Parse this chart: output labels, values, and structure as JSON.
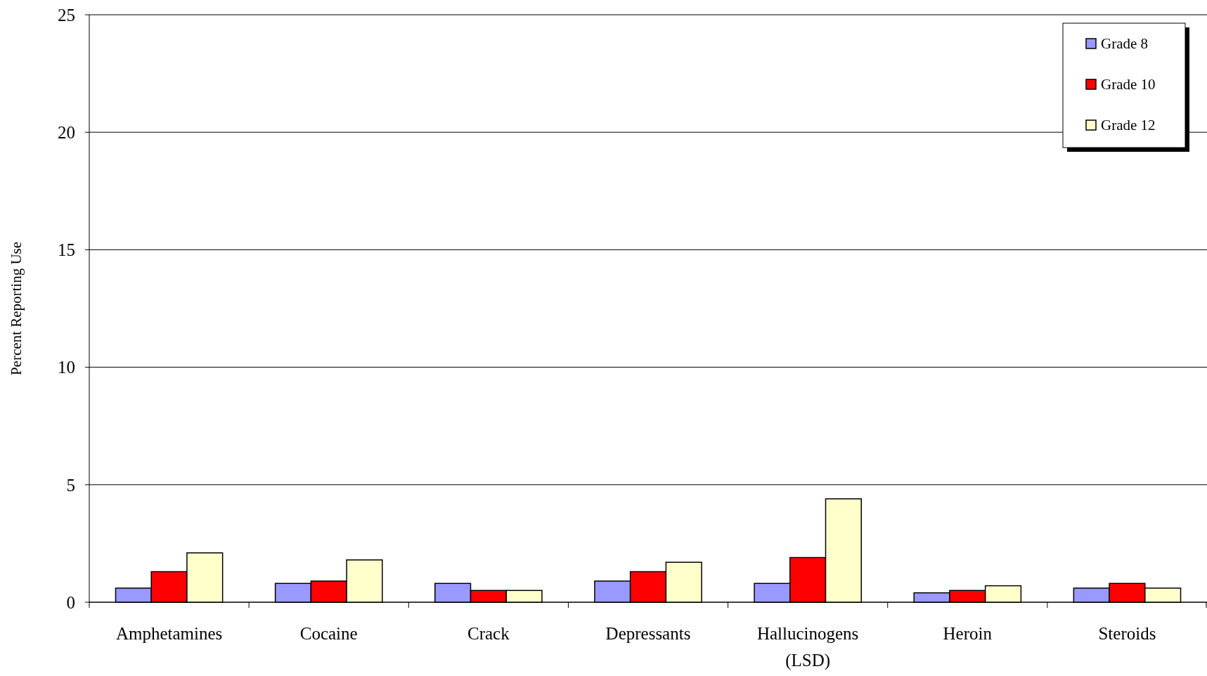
{
  "chart_data": {
    "type": "bar",
    "ylabel": "Percent Reporting Use",
    "categories": [
      "Amphetamines",
      "Cocaine",
      "Crack",
      "Depressants",
      "Hallucinogens (LSD)",
      "Heroin",
      "Steroids"
    ],
    "series": [
      {
        "name": "Grade 8",
        "color": "#9999ff",
        "values": [
          0.6,
          0.8,
          0.8,
          0.9,
          0.8,
          0.4,
          0.6
        ]
      },
      {
        "name": "Grade 10",
        "color": "#ff0000",
        "values": [
          1.3,
          0.9,
          0.5,
          1.3,
          1.9,
          0.5,
          0.8
        ]
      },
      {
        "name": "Grade 12",
        "color": "#ffffcc",
        "values": [
          2.1,
          1.8,
          0.5,
          1.7,
          4.4,
          0.7,
          0.6
        ]
      }
    ],
    "ylim": [
      0,
      25
    ],
    "yticks": [
      0,
      5,
      10,
      15,
      20,
      25
    ],
    "grid": "y",
    "legend": "top right"
  }
}
